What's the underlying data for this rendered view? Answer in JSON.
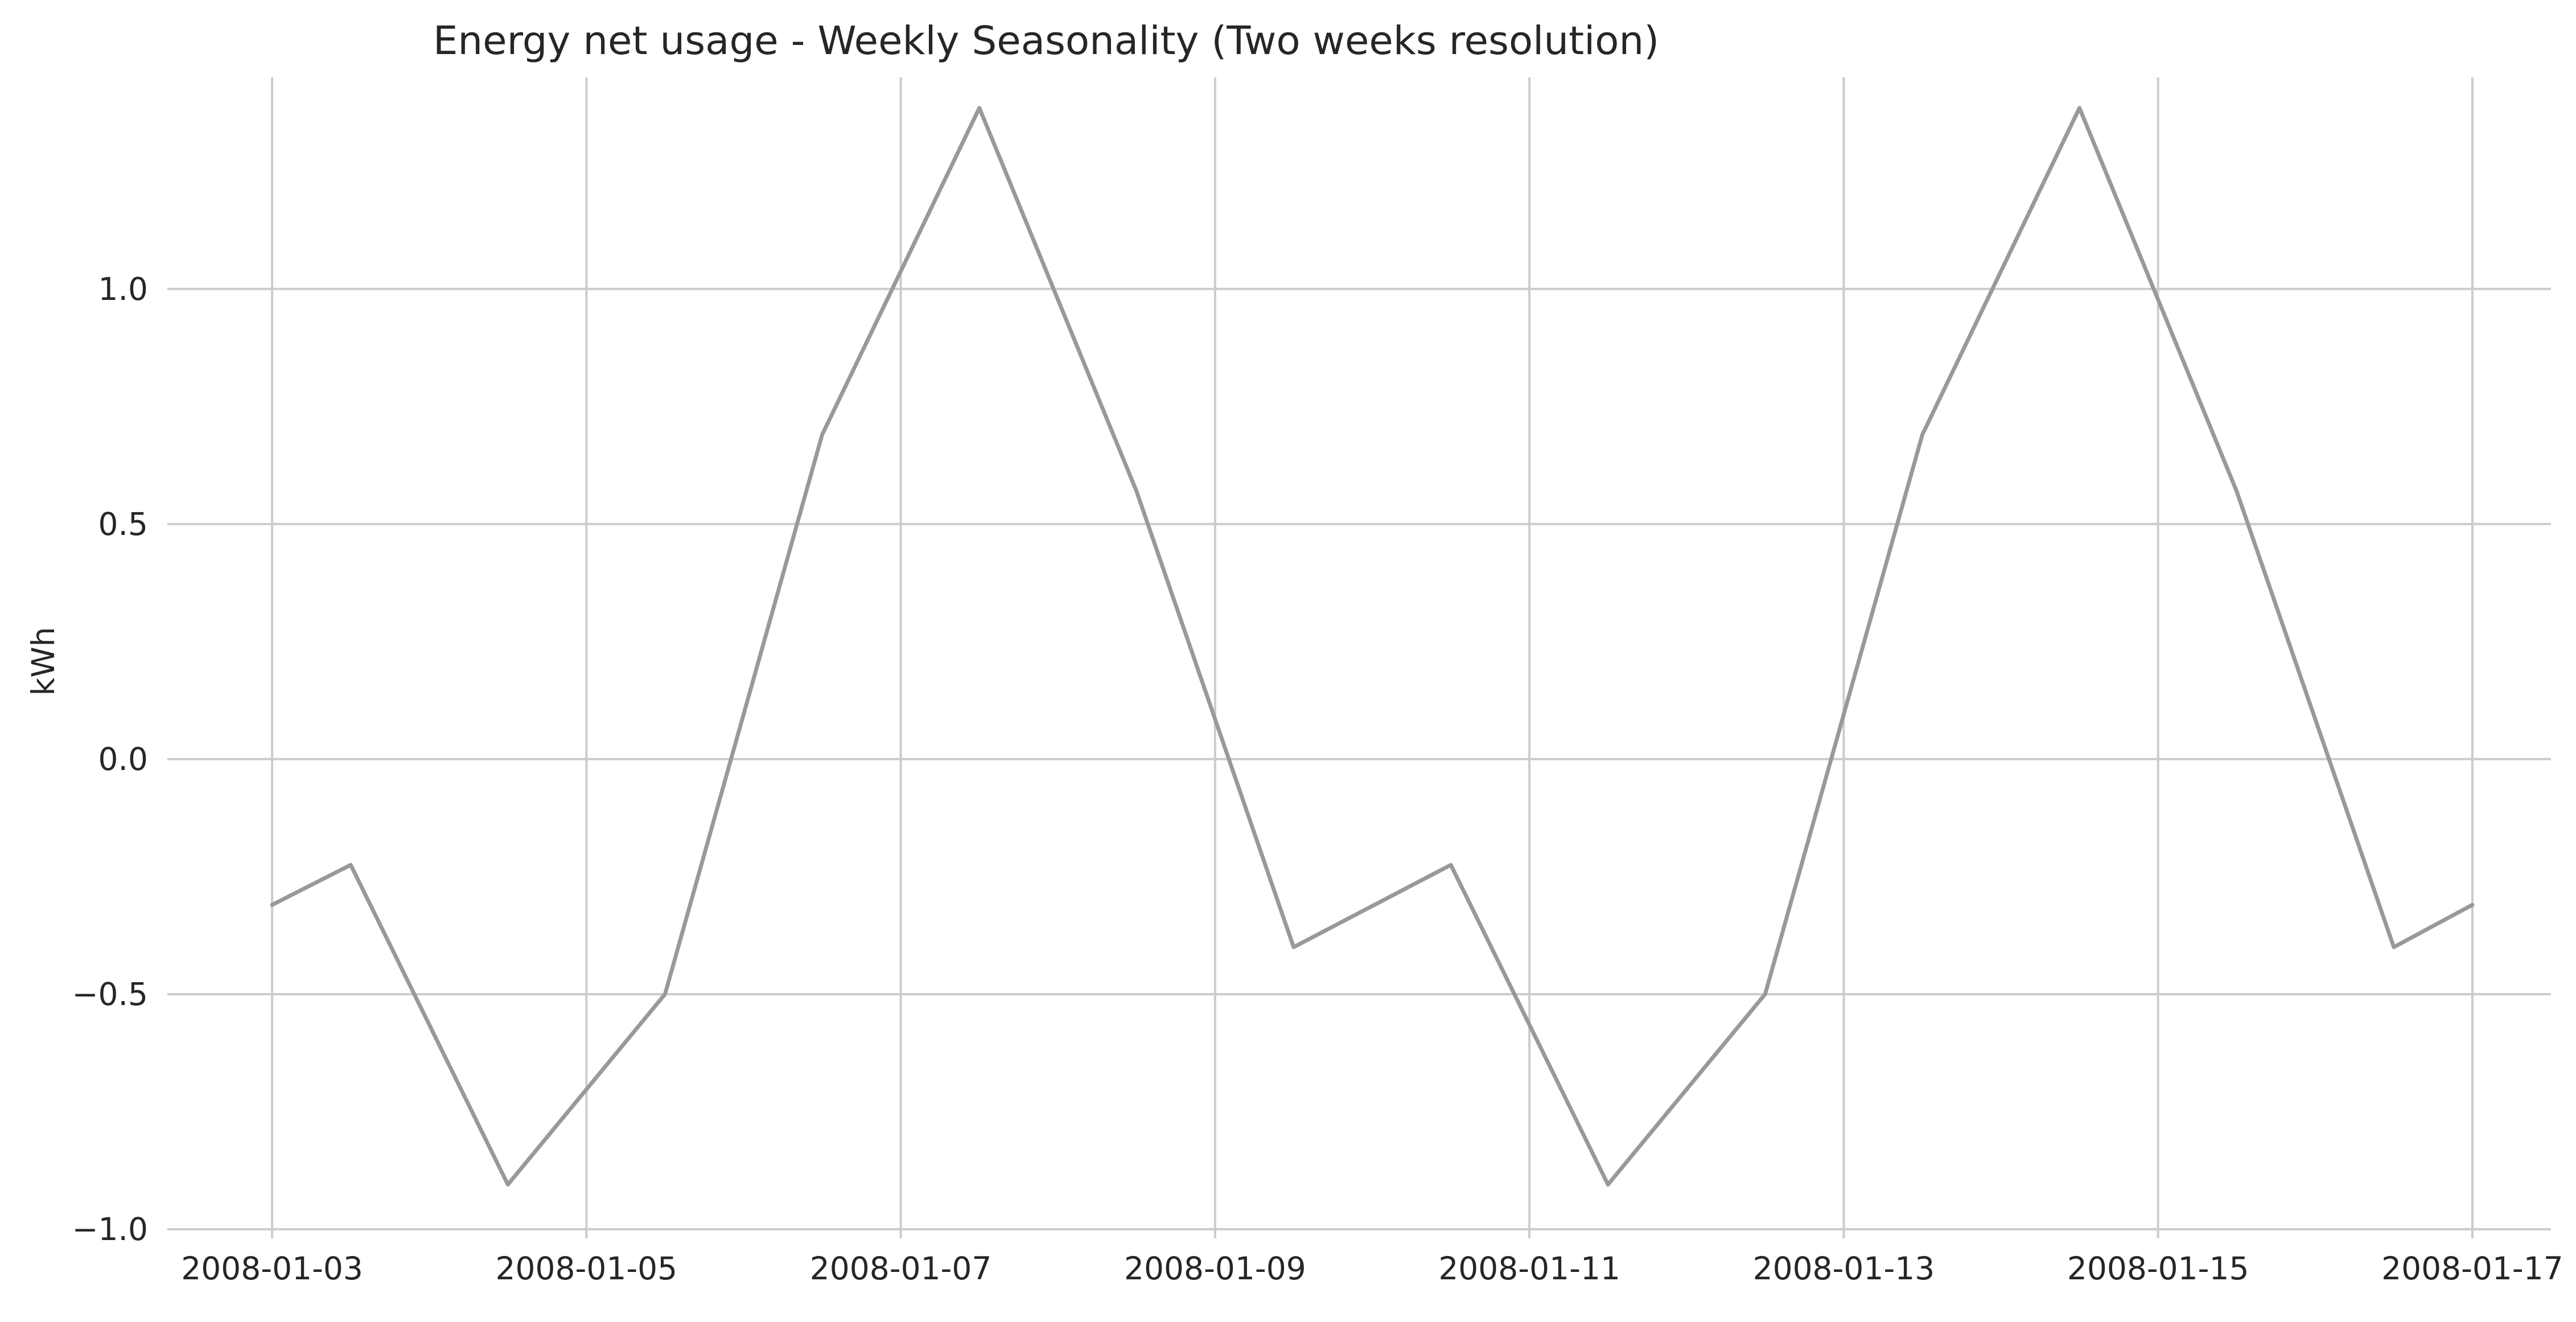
{
  "chart_data": {
    "type": "line",
    "title": "Energy net usage - Weekly Seasonality (Two weeks resolution)",
    "xlabel": "",
    "ylabel": "kWh",
    "x_type": "date",
    "xlim": [
      "2008-01-02T08:00",
      "2008-01-17T12:00"
    ],
    "ylim": [
      -1.0,
      1.45
    ],
    "x_ticks": [
      "2008-01-03",
      "2008-01-05",
      "2008-01-07",
      "2008-01-09",
      "2008-01-11",
      "2008-01-13",
      "2008-01-15",
      "2008-01-17"
    ],
    "x_tick_labels": [
      "2008-01-03",
      "2008-01-05",
      "2008-01-07",
      "2008-01-09",
      "2008-01-11",
      "2008-01-13",
      "2008-01-15",
      "2008-01-17"
    ],
    "y_ticks": [
      -1.0,
      -0.5,
      0.0,
      0.5,
      1.0
    ],
    "y_tick_labels": [
      "−1.0",
      "−0.5",
      "0.0",
      "0.5",
      "1.0"
    ],
    "grid": true,
    "series": [
      {
        "color": "#999999",
        "x": [
          "2008-01-03T00:00",
          "2008-01-03T12:00",
          "2008-01-04T12:00",
          "2008-01-05T12:00",
          "2008-01-06T12:00",
          "2008-01-07T12:00",
          "2008-01-08T12:00",
          "2008-01-09T12:00",
          "2008-01-10T12:00",
          "2008-01-11T12:00",
          "2008-01-12T12:00",
          "2008-01-13T12:00",
          "2008-01-14T12:00",
          "2008-01-15T12:00",
          "2008-01-16T12:00",
          "2008-01-17T00:00"
        ],
        "values": [
          -0.31,
          -0.225,
          -0.905,
          -0.5,
          0.69,
          1.385,
          0.57,
          -0.4,
          -0.225,
          -0.905,
          -0.5,
          0.69,
          1.385,
          0.57,
          -0.4,
          -0.31
        ]
      }
    ]
  }
}
